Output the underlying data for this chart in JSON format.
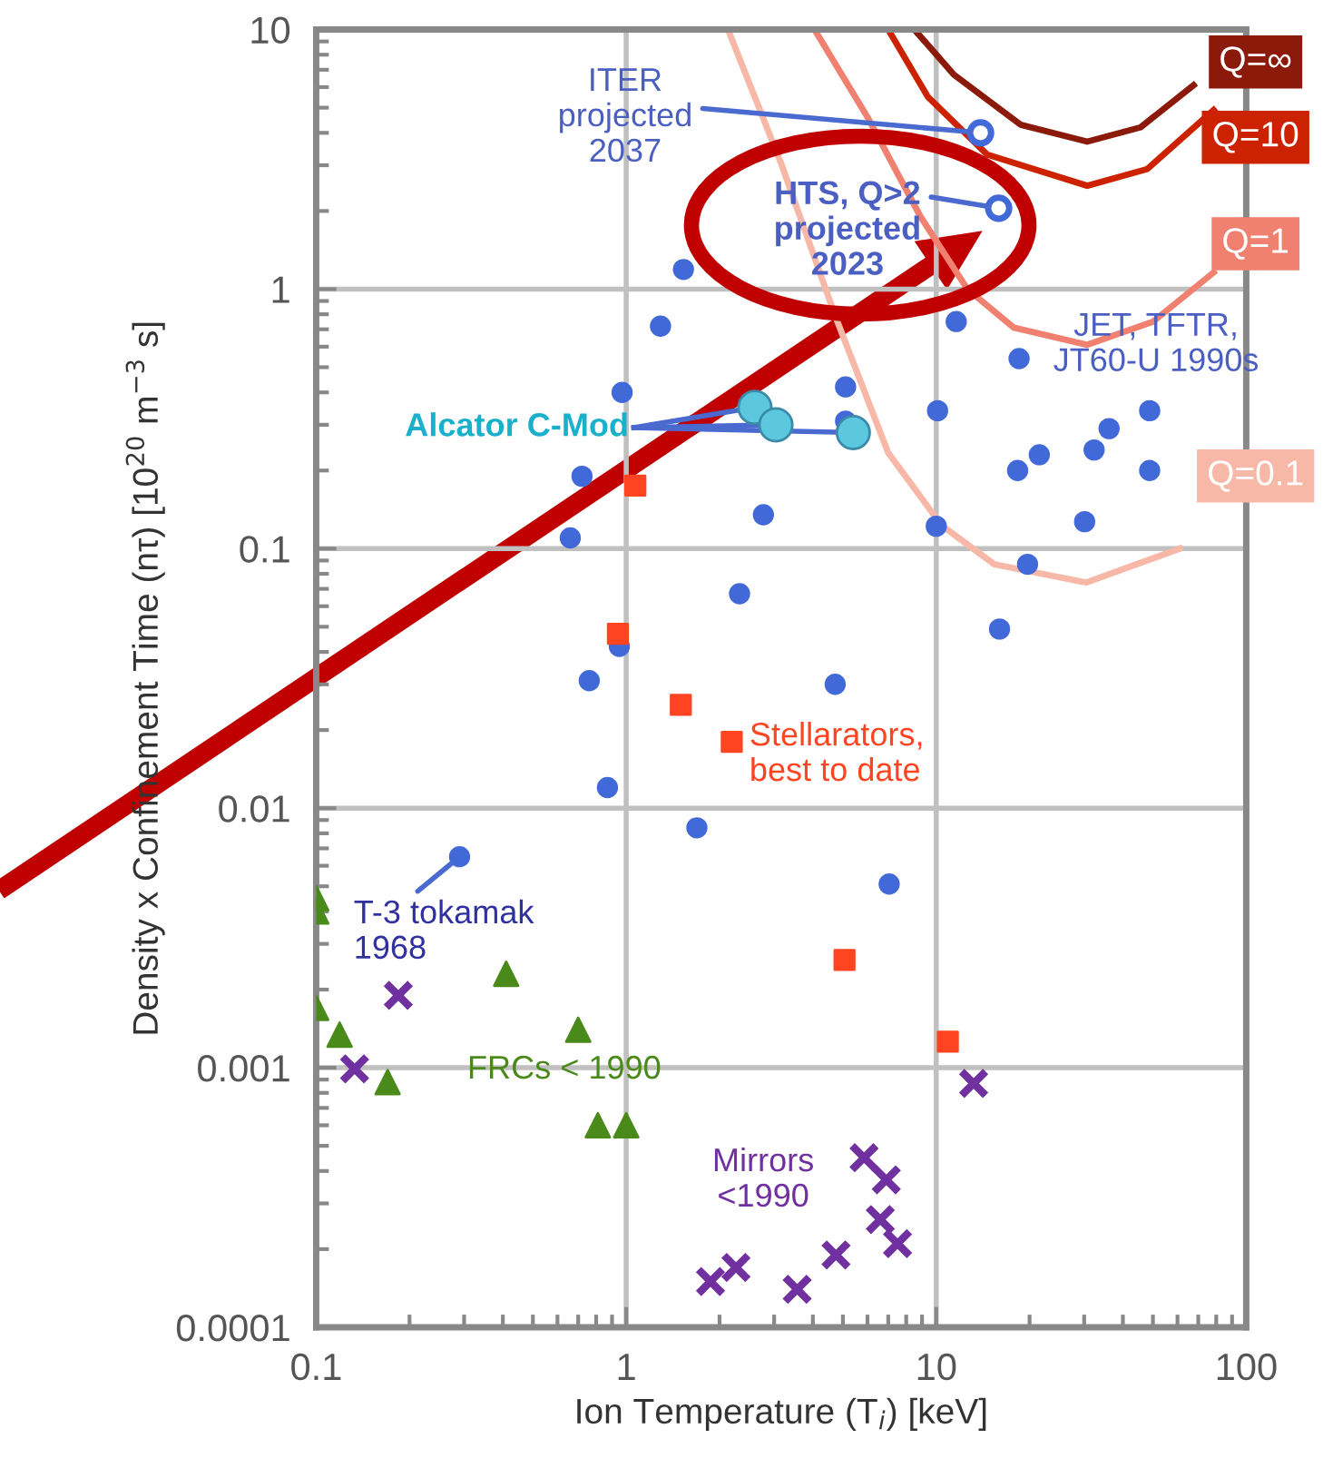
{
  "chart_data": {
    "type": "scatter",
    "xlabel": "Ion Temperature (T$_{i}$) [keV]",
    "ylabel": "Density x Confinement Time (nτ) [10$^{20}$ m$^{−3}$ s]",
    "log": "xy",
    "grid": true,
    "xlim": [
      0.1,
      100
    ],
    "ylim": [
      0.0001,
      10
    ],
    "xticks": [
      0.1,
      1,
      10,
      100
    ],
    "yticks": [
      0.0001,
      0.001,
      0.01,
      0.1,
      1,
      10
    ],
    "series": [
      {
        "marker": "circle",
        "color": "#4169d8",
        "x": [
          1.53,
          1.29,
          0.97,
          5.1,
          5.1,
          10.1,
          11.6,
          18.5,
          48.8,
          36.1,
          32.3,
          21.5,
          18.3,
          48.8,
          0.72,
          2.77,
          10,
          30.1,
          19.7,
          0.66,
          2.32,
          16,
          0.95,
          0.76,
          4.72,
          0.87,
          1.69,
          7.05,
          0.29
        ],
        "values": [
          1.19,
          0.72,
          0.4,
          0.42,
          0.31,
          0.34,
          0.75,
          0.54,
          0.34,
          0.29,
          0.24,
          0.23,
          0.2,
          0.2,
          0.19,
          0.135,
          0.122,
          0.127,
          0.087,
          0.11,
          0.067,
          0.049,
          0.042,
          0.031,
          0.03,
          0.012,
          0.0084,
          0.0051,
          0.0065
        ]
      },
      {
        "marker": "circle",
        "name": "Alcator C-Mod",
        "color": "#5bc8e0",
        "x": [
          2.6,
          3.04,
          5.4
        ],
        "values": [
          0.35,
          0.3,
          0.28
        ]
      },
      {
        "marker": "circle",
        "color": "#4169d8",
        "x": [
          13.9,
          15.9
        ],
        "values": [
          4.0,
          2.05
        ]
      },
      {
        "marker": "square",
        "name": "Stellarators,\nbest to date",
        "color": "#ff4422",
        "x": [
          1.07,
          0.94,
          1.5,
          2.19,
          5.06,
          10.9
        ],
        "values": [
          0.175,
          0.047,
          0.025,
          0.018,
          0.0026,
          0.00126
        ]
      },
      {
        "marker": "triangle",
        "name": "FRCs < 1990",
        "color": "#4a8a1a",
        "x": [
          0.1,
          0.1,
          0.1,
          0.119,
          0.17,
          0.41,
          0.7,
          0.81,
          1.0
        ],
        "values": [
          0.0045,
          0.004,
          0.0017,
          0.00134,
          0.00088,
          0.0023,
          0.0014,
          0.0006,
          0.0006
        ]
      },
      {
        "marker": "cross",
        "name": "Mirrors\n<1990",
        "color": "#7030a0",
        "x": [
          0.184,
          0.133,
          13.2,
          5.85,
          6.9,
          6.6,
          7.5,
          4.75,
          2.26,
          1.87,
          3.56
        ],
        "values": [
          0.0019,
          0.00099,
          0.00087,
          0.00045,
          0.00037,
          0.00026,
          0.00021,
          0.00019,
          0.00017,
          0.00015,
          0.00014
        ]
      },
      {
        "type": "line",
        "marker": "none",
        "name": "Q=∞",
        "color": "#8b1a0a",
        "x": [
          8.5,
          11.4,
          18.7,
          30.7,
          45.6,
          67.6
        ],
        "values": [
          10,
          6.7,
          4.3,
          3.7,
          4.2,
          6.1
        ]
      },
      {
        "type": "line",
        "marker": "none",
        "name": "Q=10",
        "color": "#cc2200",
        "x": [
          7.0,
          9.4,
          14.6,
          30.7,
          47.9,
          78.5
        ],
        "values": [
          10,
          5.5,
          3.3,
          2.5,
          2.9,
          4.9
        ]
      },
      {
        "type": "line",
        "marker": "none",
        "name": "Q=1",
        "color": "#f08070",
        "x": [
          4.05,
          6.0,
          8.9,
          12.6,
          17.8,
          30.7,
          50.1,
          78.5
        ],
        "values": [
          10,
          4.6,
          1.9,
          1.0,
          0.71,
          0.61,
          0.75,
          1.16
        ]
      },
      {
        "type": "line",
        "marker": "none",
        "name": "Q=0.1",
        "color": "#f8b8a8",
        "x": [
          2.13,
          3.16,
          4.7,
          7.0,
          10.4,
          15.4,
          30.4,
          61
        ],
        "values": [
          10,
          3.05,
          0.8,
          0.234,
          0.123,
          0.087,
          0.074,
          0.1
        ]
      }
    ],
    "annotations": [
      {
        "text": "ITER\nprojected\n2037",
        "x": 13.9,
        "y": 4.0
      },
      {
        "text": "HTS, Q>2\nprojected\n2023",
        "x": 15.9,
        "y": 2.05
      },
      {
        "text": "T-3 tokamak\n1968",
        "x": 0.29,
        "y": 0.0065
      },
      "JET, TFTR,\nJT60-U 1990s"
    ]
  }
}
